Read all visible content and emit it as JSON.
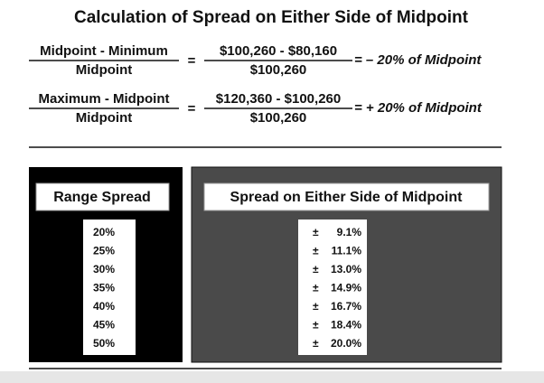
{
  "title": "Calculation of Spread on Either Side of Midpoint",
  "equations": [
    {
      "numerator": "Midpoint - Minimum",
      "denominator": "Midpoint",
      "equals": "=",
      "value_numerator": "$100,260 - $80,160",
      "value_denominator": "$100,260",
      "result": "= – 20% of Midpoint"
    },
    {
      "numerator": "Maximum - Midpoint",
      "denominator": "Midpoint",
      "equals": "=",
      "value_numerator": "$120,360 - $100,260",
      "value_denominator": "$100,260",
      "result": "= + 20% of Midpoint"
    }
  ],
  "table": {
    "left_header": "Range Spread",
    "right_header": "Spread on Either Side of Midpoint",
    "rows": [
      [
        "20%",
        "±",
        "9.1%"
      ],
      [
        "25%",
        "±",
        "11.1%"
      ],
      [
        "30%",
        "±",
        "13.0%"
      ],
      [
        "35%",
        "±",
        "14.9%"
      ],
      [
        "40%",
        "±",
        "16.7%"
      ],
      [
        "45%",
        "±",
        "18.4%"
      ],
      [
        "50%",
        "±",
        "20.0%"
      ]
    ]
  }
}
